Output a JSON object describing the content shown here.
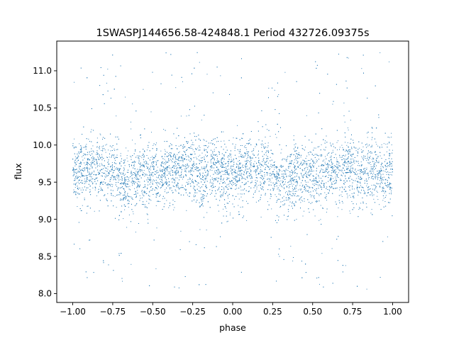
{
  "chart_data": {
    "type": "scatter",
    "title": "1SWASPJ144656.58-424848.1 Period 432726.09375s",
    "xlabel": "phase",
    "ylabel": "flux",
    "xlim": [
      -1.1,
      1.1
    ],
    "ylim": [
      7.88,
      11.4
    ],
    "xticks": [
      -1.0,
      -0.75,
      -0.5,
      -0.25,
      0.0,
      0.25,
      0.5,
      0.75,
      1.0
    ],
    "xtick_labels": [
      "−1.00",
      "−0.75",
      "−0.50",
      "−0.25",
      "0.00",
      "0.25",
      "0.50",
      "0.75",
      "1.00"
    ],
    "yticks": [
      8.0,
      8.5,
      9.0,
      9.5,
      10.0,
      10.5,
      11.0
    ],
    "ytick_labels": [
      "8.0",
      "8.5",
      "9.0",
      "9.5",
      "10.0",
      "10.5",
      "11.0"
    ],
    "grid": false,
    "marker_color": "#1f77b4",
    "series": [
      {
        "description_of_data": "phase-folded light curve, mirrored over phase -1..1",
        "x": [
          -1.0,
          -0.95,
          -0.9,
          -0.85,
          -0.8,
          -0.75,
          -0.7,
          -0.65,
          -0.6,
          -0.55,
          -0.5,
          -0.45,
          -0.4,
          -0.35,
          -0.3,
          -0.25,
          -0.2,
          -0.15,
          -0.1,
          -0.05,
          0.0,
          0.05,
          0.1,
          0.15,
          0.2,
          0.25,
          0.3,
          0.35,
          0.4,
          0.45,
          0.5,
          0.55,
          0.6,
          0.65,
          0.7,
          0.75,
          0.8,
          0.85,
          0.9,
          0.95,
          1.0
        ],
        "median_flux": [
          9.65,
          9.62,
          9.66,
          9.65,
          9.66,
          9.63,
          9.52,
          9.5,
          9.58,
          9.55,
          9.58,
          9.57,
          9.62,
          9.63,
          9.7,
          9.68,
          9.6,
          9.62,
          9.68,
          9.55,
          9.65,
          9.62,
          9.66,
          9.65,
          9.66,
          9.63,
          9.52,
          9.5,
          9.58,
          9.55,
          9.58,
          9.57,
          9.62,
          9.63,
          9.7,
          9.68,
          9.6,
          9.62,
          9.68,
          9.55,
          9.65
        ],
        "scatter_sigma": 0.22,
        "flux_min": 8.05,
        "flux_max": 11.25
      }
    ]
  }
}
